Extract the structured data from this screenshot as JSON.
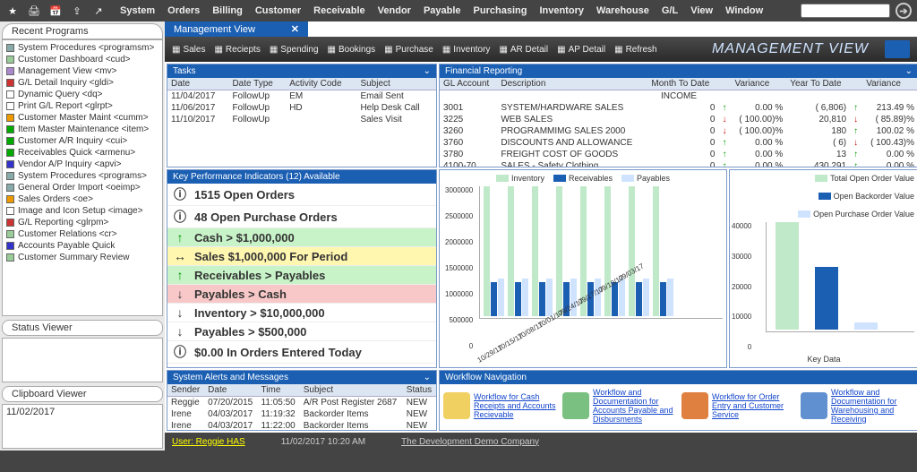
{
  "menu": [
    "System",
    "Orders",
    "Billing",
    "Customer",
    "Receivable",
    "Vendor",
    "Payable",
    "Purchasing",
    "Inventory",
    "Warehouse",
    "G/L",
    "View",
    "Window"
  ],
  "left": {
    "recent": "Recent Programs",
    "programs": [
      {
        "c": "#8aa",
        "t": "System Procedures <programsm>"
      },
      {
        "c": "#9c9",
        "t": "Customer Dashboard <cud>"
      },
      {
        "c": "#a8c",
        "t": "Management View <mv>"
      },
      {
        "c": "#c33",
        "t": "G/L Detail Inquiry <gldi>"
      },
      {
        "c": "#fff",
        "t": "Dynamic Query <dq>"
      },
      {
        "c": "#fff",
        "t": "Print G/L Report <glrpt>"
      },
      {
        "c": "#e90",
        "t": "Customer Master Maint <cumm>"
      },
      {
        "c": "#0a0",
        "t": "Item Master Maintenance <item>"
      },
      {
        "c": "#0a0",
        "t": "Customer A/R Inquiry <cui>"
      },
      {
        "c": "#0a0",
        "t": "Receivables Quick <armenu>"
      },
      {
        "c": "#33c",
        "t": "Vendor A/P Inquiry <apvi>"
      },
      {
        "c": "#8aa",
        "t": "System Procedures <programs>"
      },
      {
        "c": "#8aa",
        "t": "General Order Import <oeimp>"
      },
      {
        "c": "#e90",
        "t": "Sales Orders <oe>"
      },
      {
        "c": "#fff",
        "t": "Image and Icon Setup <image>"
      },
      {
        "c": "#c33",
        "t": "G/L Reporting <glrpm>"
      },
      {
        "c": "#9c9",
        "t": "Customer Relations <cr>"
      },
      {
        "c": "#33c",
        "t": "Accounts Payable Quick"
      },
      {
        "c": "#9c9",
        "t": "Customer Summary Review"
      }
    ],
    "status": "Status Viewer",
    "clipboard": "Clipboard Viewer",
    "clip_value": "11/02/2017"
  },
  "wintab": "Management View",
  "tool_items": [
    "Sales",
    "Reciepts",
    "Spending",
    "Bookings",
    "Purchase",
    "Inventory",
    "AR Detail",
    "AP Detail",
    "Refresh"
  ],
  "view_title": "MANAGEMENT VIEW",
  "tasks": {
    "title": "Tasks",
    "cols": [
      "Date",
      "Date Type",
      "Activity Code",
      "Subject"
    ],
    "rows": [
      [
        "11/04/2017",
        "FollowUp",
        "EM",
        "Email Sent"
      ],
      [
        "11/06/2017",
        "FollowUp",
        "HD",
        "Help Desk Call"
      ],
      [
        "11/10/2017",
        "FollowUp",
        "",
        "Sales Visit"
      ]
    ]
  },
  "fin": {
    "title": "Financial Reporting",
    "cols": [
      "GL Account",
      "Description",
      "Month To Date",
      "",
      "Variance",
      "Year To Date",
      "",
      "Variance"
    ],
    "group": "INCOME",
    "rows": [
      [
        "3001",
        "SYSTEM/HARDWARE SALES",
        "0",
        "up",
        "0.00 %",
        "( 6,806)",
        "up",
        "213.49 %"
      ],
      [
        "3225",
        "WEB SALES",
        "0",
        "dn",
        "( 100.00)%",
        "20,810",
        "dn",
        "( 85.89)%"
      ],
      [
        "3260",
        "PROGRAMMIMG SALES 2000",
        "0",
        "dn",
        "( 100.00)%",
        "180",
        "up",
        "100.02 %"
      ],
      [
        "3760",
        "DISCOUNTS AND ALLOWANCE",
        "0",
        "up",
        "0.00 %",
        "( 6)",
        "dn",
        "( 100.43)%"
      ],
      [
        "3780",
        "FREIGHT COST OF GOODS",
        "0",
        "up",
        "0.00 %",
        "13",
        "up",
        "0.00 %"
      ],
      [
        "4100-70",
        "SALES - Safety Clothing",
        "0",
        "up",
        "0.00 %",
        "430,291",
        "up",
        "0.00 %"
      ]
    ]
  },
  "kpi": {
    "title": "Key Performance Indicators (12) Available",
    "items": [
      {
        "s": "ⓘ",
        "bg": "#ffffff",
        "t": "1515 Open Orders"
      },
      {
        "s": "ⓘ",
        "bg": "#ffffff",
        "t": "48 Open Purchase Orders"
      },
      {
        "s": "↑",
        "bg": "#c8f2c8",
        "t": "Cash > $1,000,000",
        "sc": "#090"
      },
      {
        "s": "↔",
        "bg": "#fff6b0",
        "t": "Sales $1,000,000 For Period"
      },
      {
        "s": "↑",
        "bg": "#c8f2c8",
        "t": "Receivables > Payables",
        "sc": "#090"
      },
      {
        "s": "↓",
        "bg": "#f8c8c8",
        "t": "Payables > Cash"
      },
      {
        "s": "↓",
        "bg": "#ffffff",
        "t": "Inventory > $10,000,000"
      },
      {
        "s": "↓",
        "bg": "#ffffff",
        "t": "Payables > $500,000"
      },
      {
        "s": "ⓘ",
        "bg": "#ffffff",
        "t": "$0.00 In Orders Entered Today"
      }
    ]
  },
  "chart1": {
    "legend": [
      {
        "c": "#bfe9c9",
        "t": "Inventory"
      },
      {
        "c": "#1b5fb3",
        "t": "Receivables"
      },
      {
        "c": "#cfe3ff",
        "t": "Payables"
      }
    ],
    "ylabels": [
      "3000000",
      "2500000",
      "2000000",
      "1500000",
      "1000000",
      "500000",
      "0"
    ],
    "xlabels": [
      "10/29/17",
      "10/15/17",
      "10/08/17",
      "10/01/17",
      "09/24/17",
      "09/17/17",
      "09/10/17",
      "09/03/17"
    ],
    "groups": [
      [
        145,
        38,
        42
      ],
      [
        145,
        38,
        42
      ],
      [
        145,
        38,
        42
      ],
      [
        145,
        38,
        42
      ],
      [
        145,
        38,
        42
      ],
      [
        145,
        38,
        42
      ],
      [
        145,
        38,
        42
      ],
      [
        145,
        38,
        42
      ]
    ]
  },
  "chart2": {
    "legend": [
      {
        "c": "#bfe9c9",
        "t": "Total Open Order Value"
      },
      {
        "c": "#1b5fb3",
        "t": "Open Backorder Value"
      },
      {
        "c": "#cfe3ff",
        "t": "Open Purchase Order Value"
      }
    ],
    "ylabels": [
      "40000",
      "30000",
      "20000",
      "10000",
      "0"
    ],
    "bars": [
      {
        "c": "#bfe9c9",
        "h": 120
      },
      {
        "c": "#1b5fb3",
        "h": 70
      },
      {
        "c": "#cfe3ff",
        "h": 8
      }
    ],
    "xlabel": "Key Data"
  },
  "alerts": {
    "title": "System Alerts and Messages",
    "cols": [
      "Sender",
      "Date",
      "Time",
      "Subject",
      "Status"
    ],
    "rows": [
      [
        "Reggie",
        "07/20/2015",
        "11:05:50",
        "A/R Post Register 2687",
        "NEW"
      ],
      [
        "Irene",
        "04/03/2017",
        "11:19:32",
        "Backorder Items",
        "NEW"
      ],
      [
        "Irene",
        "04/03/2017",
        "11:22:00",
        "Backorder Items",
        "NEW"
      ]
    ]
  },
  "workflow": {
    "title": "Workflow Navigation",
    "items": [
      "Workflow for Cash Receipts and Accounts Recievable",
      "Workflow and Documentation for Accounts Payable and Disbursments",
      "Workflow for Order Entry and Customer Service",
      "Workflow and Documentation for Warehousing and Receiving"
    ]
  },
  "footer": {
    "user": "User: Reggie HAS",
    "dt": "11/02/2017  10:20 AM",
    "comp": "The Development Demo Company"
  }
}
